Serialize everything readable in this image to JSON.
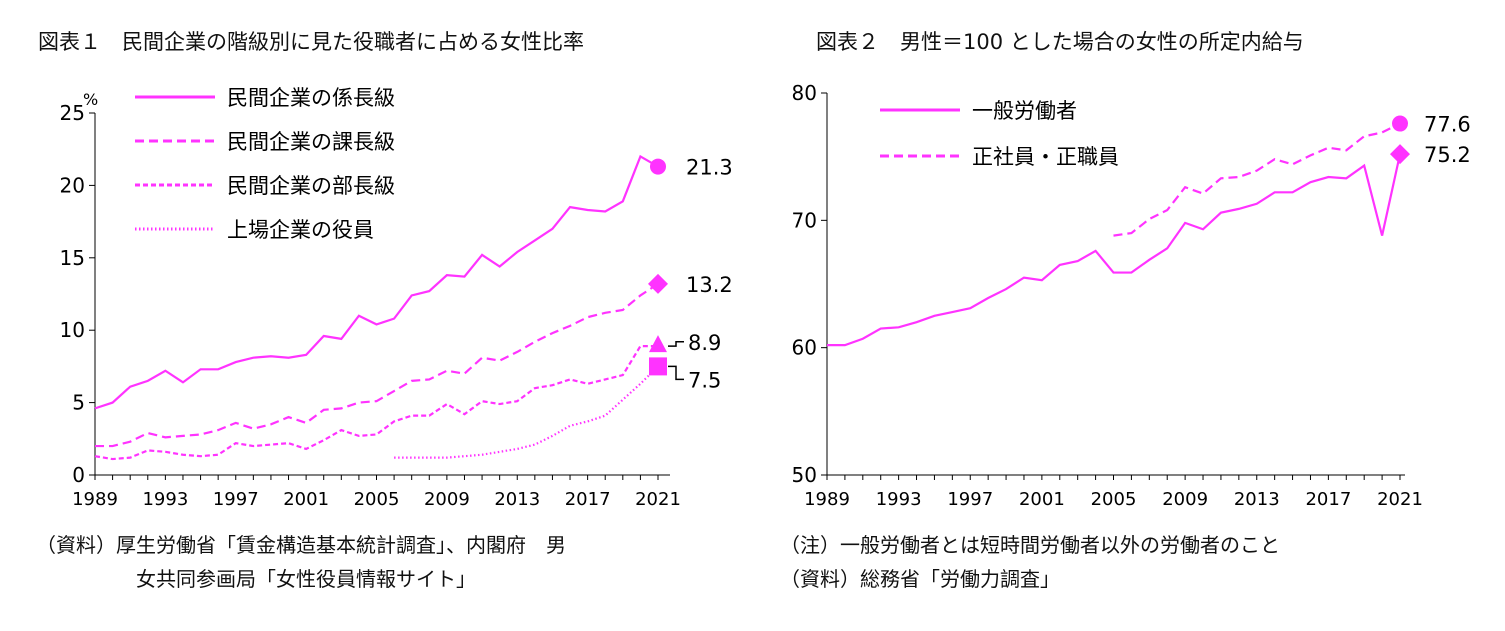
{
  "colors": {
    "accent": "#ff33ff",
    "axis": "#000000"
  },
  "chart_data": [
    {
      "type": "line",
      "title": "図表１　民間企業の階級別に見た役職者に占める女性比率",
      "ylabel": "%",
      "ylim": [
        0,
        25
      ],
      "yticks": [
        "0",
        "5",
        "10",
        "15",
        "20",
        "25"
      ],
      "xlim": [
        1989,
        2021
      ],
      "xticks": [
        "1989",
        "1993",
        "1997",
        "2001",
        "2005",
        "2009",
        "2013",
        "2017",
        "2021"
      ],
      "legend_position": "top-left",
      "series": [
        {
          "name": "上場企業の役員",
          "style": "dotted",
          "x": [
            2006,
            2007,
            2008,
            2009,
            2010,
            2011,
            2012,
            2013,
            2014,
            2015,
            2016,
            2017,
            2018,
            2019,
            2020,
            2021
          ],
          "values": [
            1.2,
            1.2,
            1.2,
            1.2,
            1.3,
            1.4,
            1.6,
            1.8,
            2.1,
            2.7,
            3.4,
            3.7,
            4.1,
            5.2,
            6.3,
            7.5
          ],
          "end_marker": "square",
          "end_label": "7.5"
        },
        {
          "name": "民間企業の部長級",
          "style": "dashed-short",
          "x": [
            1989,
            1990,
            1991,
            1992,
            1993,
            1994,
            1995,
            1996,
            1997,
            1998,
            1999,
            2000,
            2001,
            2002,
            2003,
            2004,
            2005,
            2006,
            2007,
            2008,
            2009,
            2010,
            2011,
            2012,
            2013,
            2014,
            2015,
            2016,
            2017,
            2018,
            2019,
            2020,
            2021
          ],
          "values": [
            1.3,
            1.1,
            1.2,
            1.7,
            1.6,
            1.4,
            1.3,
            1.4,
            2.2,
            2.0,
            2.1,
            2.2,
            1.8,
            2.4,
            3.1,
            2.7,
            2.8,
            3.7,
            4.1,
            4.1,
            4.9,
            4.2,
            5.1,
            4.9,
            5.1,
            6.0,
            6.2,
            6.6,
            6.3,
            6.6,
            6.9,
            8.9,
            8.9
          ],
          "end_marker": "triangle",
          "end_label": "8.9"
        },
        {
          "name": "民間企業の課長級",
          "style": "dashed-long",
          "x": [
            1989,
            1990,
            1991,
            1992,
            1993,
            1994,
            1995,
            1996,
            1997,
            1998,
            1999,
            2000,
            2001,
            2002,
            2003,
            2004,
            2005,
            2006,
            2007,
            2008,
            2009,
            2010,
            2011,
            2012,
            2013,
            2014,
            2015,
            2016,
            2017,
            2018,
            2019,
            2020,
            2021
          ],
          "values": [
            2.0,
            2.0,
            2.3,
            2.9,
            2.6,
            2.7,
            2.8,
            3.1,
            3.6,
            3.2,
            3.5,
            4.0,
            3.6,
            4.5,
            4.6,
            5.0,
            5.1,
            5.8,
            6.5,
            6.6,
            7.2,
            7.0,
            8.1,
            7.9,
            8.5,
            9.2,
            9.8,
            10.3,
            10.9,
            11.2,
            11.4,
            12.4,
            13.2
          ],
          "end_marker": "diamond",
          "end_label": "13.2"
        },
        {
          "name": "民間企業の係長級",
          "style": "solid",
          "x": [
            1989,
            1990,
            1991,
            1992,
            1993,
            1994,
            1995,
            1996,
            1997,
            1998,
            1999,
            2000,
            2001,
            2002,
            2003,
            2004,
            2005,
            2006,
            2007,
            2008,
            2009,
            2010,
            2011,
            2012,
            2013,
            2014,
            2015,
            2016,
            2017,
            2018,
            2019,
            2020,
            2021
          ],
          "values": [
            4.6,
            5.0,
            6.1,
            6.5,
            7.2,
            6.4,
            7.3,
            7.3,
            7.8,
            8.1,
            8.2,
            8.1,
            8.3,
            9.6,
            9.4,
            11.0,
            10.4,
            10.8,
            12.4,
            12.7,
            13.8,
            13.7,
            15.2,
            14.4,
            15.4,
            16.2,
            17.0,
            18.5,
            18.3,
            18.2,
            18.9,
            22.0,
            21.3
          ],
          "end_marker": "circle",
          "end_label": "21.3"
        }
      ]
    },
    {
      "type": "line",
      "title": "図表２　男性＝100 とした場合の女性の所定内給与",
      "ylim": [
        50,
        80
      ],
      "yticks": [
        "50",
        "60",
        "70",
        "80"
      ],
      "xlim": [
        1989,
        2021
      ],
      "xticks": [
        "1989",
        "1993",
        "1997",
        "2001",
        "2005",
        "2009",
        "2013",
        "2017",
        "2021"
      ],
      "legend_position": "top-left",
      "series": [
        {
          "name": "一般労働者",
          "style": "solid",
          "x": [
            1989,
            1990,
            1991,
            1992,
            1993,
            1994,
            1995,
            1996,
            1997,
            1998,
            1999,
            2000,
            2001,
            2002,
            2003,
            2004,
            2005,
            2006,
            2007,
            2008,
            2009,
            2010,
            2011,
            2012,
            2013,
            2014,
            2015,
            2016,
            2017,
            2018,
            2019,
            2020,
            2021
          ],
          "values": [
            60.2,
            60.2,
            60.7,
            61.5,
            61.6,
            62.0,
            62.5,
            62.8,
            63.1,
            63.9,
            64.6,
            65.5,
            65.3,
            66.5,
            66.8,
            67.6,
            65.9,
            65.9,
            66.9,
            67.8,
            69.8,
            69.3,
            70.6,
            70.9,
            71.3,
            72.2,
            72.2,
            73.0,
            73.4,
            73.3,
            74.3,
            68.8,
            75.2
          ],
          "end_marker": "diamond",
          "end_label": "75.2"
        },
        {
          "name": "正社員・正職員",
          "style": "dashed",
          "x": [
            2005,
            2006,
            2007,
            2008,
            2009,
            2010,
            2011,
            2012,
            2013,
            2014,
            2015,
            2016,
            2017,
            2018,
            2019,
            2020,
            2021
          ],
          "values": [
            68.8,
            69.0,
            70.1,
            70.8,
            72.6,
            72.1,
            73.3,
            73.4,
            73.9,
            74.8,
            74.4,
            75.1,
            75.7,
            75.5,
            76.6,
            76.9,
            77.6
          ],
          "end_marker": "circle",
          "end_label": "77.6"
        }
      ]
    }
  ],
  "source1_line1": "（資料）厚生労働省「賃金構造基本統計調査」、内閣府　男",
  "source1_line2": "女共同参画局「女性役員情報サイト」",
  "note2": "（注）一般労働者とは短時間労働者以外の労働者のこと",
  "source2": "（資料）総務省「労働力調査」"
}
